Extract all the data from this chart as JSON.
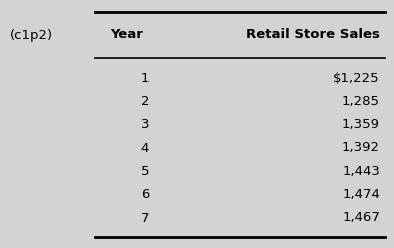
{
  "label": "(c1p2)",
  "col1_header": "Year",
  "col2_header": "Retail Store Sales",
  "years": [
    "1",
    "2",
    "3",
    "4",
    "5",
    "6",
    "7"
  ],
  "sales": [
    "$1,225",
    "1,285",
    "1,359",
    "1,392",
    "1,443",
    "1,474",
    "1,467"
  ],
  "background_color": "#d3d3d3",
  "header_fontsize": 9.5,
  "data_fontsize": 9.5,
  "label_fontsize": 9.5
}
